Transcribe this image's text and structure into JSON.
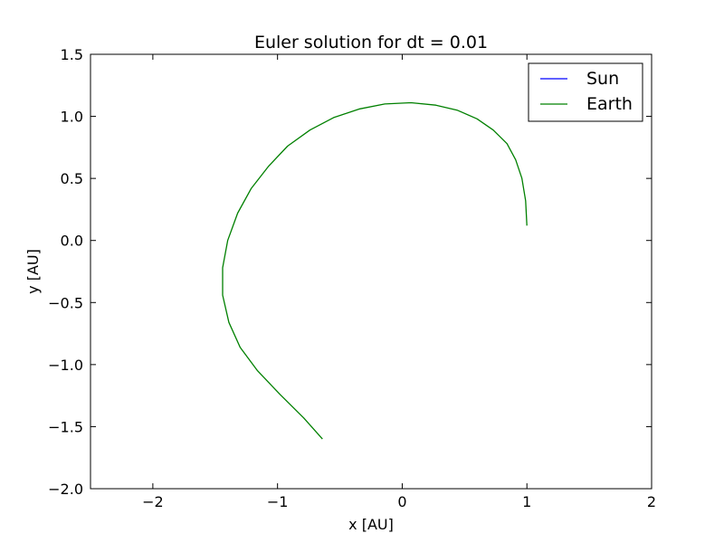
{
  "chart_data": {
    "type": "line",
    "title": "Euler solution for dt = 0.01",
    "xlabel": "x [AU]",
    "ylabel": "y [AU]",
    "xlim": [
      -2.5,
      2
    ],
    "ylim": [
      -2.0,
      1.5
    ],
    "xticks": [
      -2,
      -1,
      0,
      1,
      2
    ],
    "xtick_labels": [
      "−2",
      "−1",
      "0",
      "1",
      "2"
    ],
    "yticks": [
      -2.0,
      -1.5,
      -1.0,
      -0.5,
      0.0,
      0.5,
      1.0,
      1.5
    ],
    "ytick_labels": [
      "−2.0",
      "−1.5",
      "−1.0",
      "−0.5",
      "0.0",
      "0.5",
      "1.0",
      "1.5"
    ],
    "grid": false,
    "legend_position": "top-right",
    "series": [
      {
        "name": "Sun",
        "color": "#0000ff",
        "x": [],
        "y": []
      },
      {
        "name": "Earth",
        "color": "#008000",
        "x": [
          1.0,
          0.99,
          0.96,
          0.91,
          0.84,
          0.73,
          0.6,
          0.44,
          0.27,
          0.07,
          -0.14,
          -0.34,
          -0.55,
          -0.74,
          -0.92,
          -1.07,
          -1.21,
          -1.32,
          -1.4,
          -1.44,
          -1.44,
          -1.39,
          -1.3,
          -1.16,
          -0.98,
          -0.79,
          -0.64
        ],
        "y": [
          0.12,
          0.32,
          0.5,
          0.65,
          0.78,
          0.89,
          0.98,
          1.05,
          1.09,
          1.11,
          1.1,
          1.06,
          0.99,
          0.89,
          0.76,
          0.6,
          0.42,
          0.22,
          0.0,
          -0.22,
          -0.44,
          -0.66,
          -0.86,
          -1.05,
          -1.24,
          -1.43,
          -1.6
        ]
      }
    ]
  }
}
